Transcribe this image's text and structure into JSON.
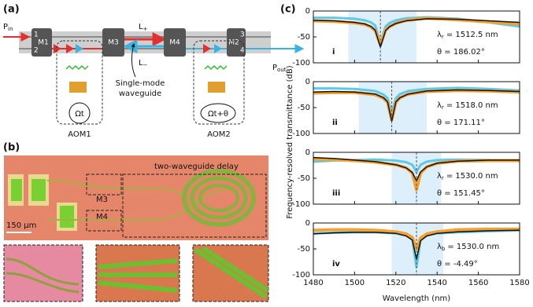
{
  "panel_a": {
    "label": "(a)",
    "input": "P",
    "input_sub": "in",
    "output": "P",
    "output_sub": "out",
    "mirrors": [
      "M1",
      "M3",
      "M4",
      "M2"
    ],
    "ports": [
      "1",
      "2",
      "3",
      "4"
    ],
    "l_plus": "L",
    "l_plus_sub": "+",
    "l_minus": "L",
    "l_minus_sub": "−",
    "waveguide_line1": "Single-mode",
    "waveguide_line2": "waveguide",
    "aom1_phase": "Ωt",
    "aom2_phase": "Ωt+θ",
    "aom1": "AOM1",
    "aom2": "AOM2"
  },
  "panel_b": {
    "label": "(b)",
    "title": "two-waveguide delay",
    "m3": "M3",
    "m4": "M4",
    "scale": "150 µm"
  },
  "panel_c": {
    "label": "(c)",
    "ylabel": "Frequency-resolved transmittance (dB)",
    "xlabel": "Wavelength (nm)"
  },
  "chart_data": [
    {
      "type": "line",
      "xlim": [
        1480,
        1580
      ],
      "ylim": [
        -100,
        0
      ],
      "yticks": [
        -100,
        -50,
        0
      ],
      "xticks": [
        1480,
        1500,
        1520,
        1540,
        1560,
        1580
      ],
      "show_xtick_labels": false,
      "band": [
        1497,
        1530
      ],
      "marker_x": 1512.5,
      "band_color": "#dceffa",
      "x": [
        1480,
        1490,
        1500,
        1505,
        1508,
        1510,
        1512.5,
        1515,
        1517,
        1520,
        1525,
        1535,
        1550,
        1565,
        1580
      ],
      "series": [
        {
          "color": "#5cc8ea",
          "width": 3,
          "values": [
            -13,
            -13,
            -15,
            -18,
            -22,
            -28,
            -62,
            -30,
            -23,
            -18,
            -14,
            -12,
            -15,
            -22,
            -30
          ]
        },
        {
          "color": "#f5a030",
          "width": 4,
          "values": [
            -19,
            -20,
            -23,
            -26,
            -31,
            -38,
            -65,
            -37,
            -30,
            -24,
            -18,
            -14,
            -17,
            -21,
            -25
          ]
        },
        {
          "color": "#111111",
          "width": 1.5,
          "values": [
            -18,
            -19,
            -22,
            -25,
            -30,
            -37,
            -70,
            -38,
            -30,
            -24,
            -19,
            -15,
            -16,
            -19,
            -22
          ]
        }
      ],
      "lambda": "λ",
      "lambda_sub": "r",
      "lambda_text": "= 1512.5 nm",
      "theta_text": "θ = 186.02°",
      "roman": "i"
    },
    {
      "type": "line",
      "xlim": [
        1480,
        1580
      ],
      "ylim": [
        -100,
        0
      ],
      "yticks": [
        -100,
        -50,
        0
      ],
      "xticks": [
        1480,
        1500,
        1520,
        1540,
        1560,
        1580
      ],
      "show_xtick_labels": false,
      "band": [
        1502,
        1535
      ],
      "marker_x": 1518,
      "band_color": "#dceffa",
      "x": [
        1480,
        1490,
        1500,
        1510,
        1514,
        1516,
        1518,
        1520,
        1522,
        1526,
        1535,
        1550,
        1565,
        1580
      ],
      "series": [
        {
          "color": "#5cc8ea",
          "width": 3,
          "values": [
            -13,
            -13,
            -14,
            -18,
            -25,
            -32,
            -60,
            -32,
            -24,
            -18,
            -14,
            -12,
            -14,
            -17
          ]
        },
        {
          "color": "#f5a030",
          "width": 4,
          "values": [
            -22,
            -21,
            -21,
            -25,
            -32,
            -40,
            -74,
            -40,
            -31,
            -24,
            -19,
            -17,
            -18,
            -20
          ]
        },
        {
          "color": "#111111",
          "width": 1.5,
          "values": [
            -20,
            -19,
            -20,
            -24,
            -31,
            -39,
            -76,
            -39,
            -31,
            -24,
            -18,
            -16,
            -17,
            -19
          ]
        }
      ],
      "lambda": "λ",
      "lambda_sub": "r",
      "lambda_text": "= 1518.0 nm",
      "theta_text": "θ = 171.11°",
      "roman": "ii"
    },
    {
      "type": "line",
      "xlim": [
        1480,
        1580
      ],
      "ylim": [
        -100,
        0
      ],
      "yticks": [
        -100,
        -50,
        0
      ],
      "xticks": [
        1480,
        1500,
        1520,
        1540,
        1560,
        1580
      ],
      "show_xtick_labels": false,
      "band": [
        1518,
        1542
      ],
      "marker_x": 1530,
      "band_color": "#dceffa",
      "x": [
        1480,
        1490,
        1500,
        1510,
        1520,
        1525,
        1528,
        1530,
        1532,
        1535,
        1540,
        1550,
        1565,
        1580
      ],
      "series": [
        {
          "color": "#5cc8ea",
          "width": 3,
          "values": [
            -18,
            -16,
            -15,
            -14,
            -16,
            -19,
            -24,
            -38,
            -24,
            -18,
            -15,
            -14,
            -15,
            -17
          ]
        },
        {
          "color": "#f5a030",
          "width": 4,
          "values": [
            -13,
            -14,
            -16,
            -19,
            -24,
            -30,
            -40,
            -72,
            -40,
            -28,
            -21,
            -17,
            -16,
            -16
          ]
        },
        {
          "color": "#111111",
          "width": 1.5,
          "values": [
            -10,
            -12,
            -15,
            -18,
            -24,
            -30,
            -39,
            -55,
            -38,
            -28,
            -21,
            -17,
            -15,
            -15
          ]
        }
      ],
      "lambda": "λ",
      "lambda_sub": "r",
      "lambda_text": "= 1530.0 nm",
      "theta_text": "θ = 151.45°",
      "roman": "iii"
    },
    {
      "type": "line",
      "xlim": [
        1480,
        1580
      ],
      "ylim": [
        -100,
        0
      ],
      "yticks": [
        -100,
        -50,
        0
      ],
      "xticks": [
        1480,
        1500,
        1520,
        1540,
        1560,
        1580
      ],
      "show_xtick_labels": true,
      "band": [
        1518,
        1543
      ],
      "marker_x": 1530,
      "band_color": "#dceffa",
      "x": [
        1480,
        1490,
        1500,
        1510,
        1520,
        1525,
        1528,
        1530,
        1532,
        1535,
        1540,
        1550,
        1565,
        1580
      ],
      "series": [
        {
          "color": "#5cc8ea",
          "width": 3,
          "values": [
            -20,
            -19,
            -18,
            -18,
            -20,
            -24,
            -32,
            -85,
            -33,
            -24,
            -20,
            -18,
            -16,
            -14
          ]
        },
        {
          "color": "#f5a030",
          "width": 4,
          "values": [
            -14,
            -13,
            -13,
            -14,
            -17,
            -21,
            -28,
            -50,
            -29,
            -21,
            -17,
            -13,
            -12,
            -12
          ]
        },
        {
          "color": "#111111",
          "width": 1.5,
          "values": [
            -21,
            -19,
            -18,
            -18,
            -20,
            -25,
            -33,
            -70,
            -34,
            -25,
            -20,
            -17,
            -15,
            -14
          ]
        }
      ],
      "lambda": "λ",
      "lambda_sub": "b",
      "lambda_text": "= 1530.0 nm",
      "theta_text": "θ = -4.49°",
      "roman": "iv"
    }
  ]
}
